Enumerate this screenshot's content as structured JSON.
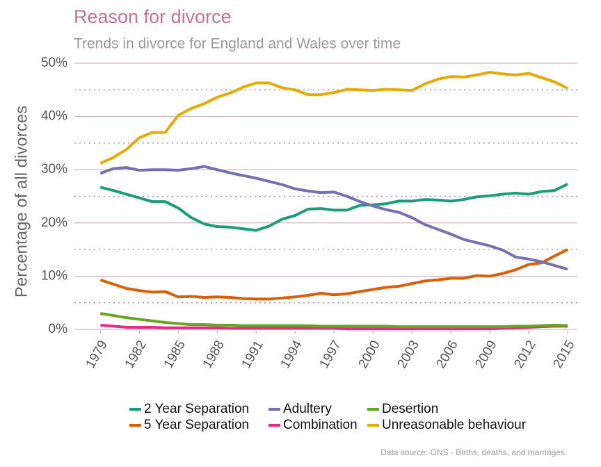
{
  "chart_data": {
    "type": "line",
    "title": "Reason for divorce",
    "subtitle": "Trends in divorce for England and Wales over time",
    "y_label": "Percentage of all divorces",
    "caption": "Data source: ONS - Births, deaths, and marriages",
    "x": [
      1979,
      1980,
      1981,
      1982,
      1983,
      1984,
      1985,
      1986,
      1987,
      1988,
      1989,
      1990,
      1991,
      1992,
      1993,
      1994,
      1995,
      1996,
      1997,
      1998,
      1999,
      2000,
      2001,
      2002,
      2003,
      2004,
      2005,
      2006,
      2007,
      2008,
      2009,
      2010,
      2011,
      2012,
      2013,
      2014,
      2015
    ],
    "xlim": [
      1977,
      2015.75
    ],
    "xticks": [
      1979,
      1982,
      1985,
      1988,
      1991,
      1994,
      1997,
      2000,
      2003,
      2006,
      2009,
      2012,
      2015
    ],
    "ylim": [
      0,
      50
    ],
    "yticks": [
      {
        "value": 0,
        "label": "0%"
      },
      {
        "value": 10,
        "label": "10%"
      },
      {
        "value": 20,
        "label": "20%"
      },
      {
        "value": 30,
        "label": "30%"
      },
      {
        "value": 40,
        "label": "40%"
      },
      {
        "value": 50,
        "label": "50%"
      }
    ],
    "minor_yticks": [
      5,
      15,
      25,
      35,
      45
    ],
    "grid": true,
    "legend": "bottom",
    "series": [
      {
        "name": "2 Year Separation",
        "color": "#1b9e77",
        "values": [
          26.7,
          26.1,
          25.4,
          24.7,
          24.0,
          24.0,
          22.8,
          21.0,
          19.8,
          19.3,
          19.2,
          18.9,
          18.6,
          19.4,
          20.7,
          21.4,
          22.6,
          22.7,
          22.4,
          22.4,
          23.3,
          23.4,
          23.6,
          24.1,
          24.1,
          24.4,
          24.3,
          24.1,
          24.4,
          24.9,
          25.1,
          25.4,
          25.6,
          25.4,
          25.9,
          26.1,
          27.3
        ]
      },
      {
        "name": "5 Year Separation",
        "color": "#d95f02",
        "values": [
          9.3,
          8.5,
          7.7,
          7.3,
          7.0,
          7.1,
          6.1,
          6.2,
          6.0,
          6.1,
          6.0,
          5.8,
          5.7,
          5.7,
          5.9,
          6.1,
          6.4,
          6.8,
          6.5,
          6.7,
          7.1,
          7.5,
          7.9,
          8.1,
          8.6,
          9.1,
          9.3,
          9.6,
          9.6,
          10.1,
          10.0,
          10.5,
          11.2,
          12.2,
          12.5,
          13.8,
          15.0
        ]
      },
      {
        "name": "Adultery",
        "color": "#7570b3",
        "values": [
          29.3,
          30.2,
          30.4,
          29.9,
          30.0,
          30.0,
          29.9,
          30.2,
          30.6,
          30.0,
          29.4,
          28.9,
          28.4,
          27.8,
          27.2,
          26.4,
          26.0,
          25.7,
          25.8,
          25.0,
          24.0,
          23.2,
          22.5,
          22.0,
          21.0,
          19.7,
          18.8,
          17.9,
          16.9,
          16.3,
          15.7,
          14.9,
          13.6,
          13.2,
          12.7,
          12.0,
          11.3
        ]
      },
      {
        "name": "Combination",
        "color": "#e7298a",
        "values": [
          0.8,
          0.6,
          0.4,
          0.4,
          0.4,
          0.3,
          0.3,
          0.3,
          0.3,
          0.3,
          0.2,
          0.2,
          0.2,
          0.2,
          0.2,
          0.2,
          0.2,
          0.2,
          0.2,
          0.1,
          0.1,
          0.1,
          0.1,
          0.1,
          0.1,
          0.1,
          0.1,
          0.1,
          0.1,
          0.1,
          0.1,
          0.2,
          0.3,
          0.4,
          0.5,
          0.6,
          0.6
        ]
      },
      {
        "name": "Desertion",
        "color": "#66a61e",
        "values": [
          3.0,
          2.6,
          2.2,
          1.9,
          1.6,
          1.3,
          1.1,
          0.9,
          0.9,
          0.8,
          0.8,
          0.7,
          0.7,
          0.7,
          0.7,
          0.7,
          0.7,
          0.6,
          0.6,
          0.6,
          0.6,
          0.6,
          0.6,
          0.5,
          0.5,
          0.5,
          0.5,
          0.5,
          0.5,
          0.5,
          0.5,
          0.5,
          0.6,
          0.6,
          0.7,
          0.8,
          0.7
        ]
      },
      {
        "name": "Unreasonable behaviour",
        "color": "#e6ab02",
        "values": [
          31.2,
          32.3,
          33.8,
          36.0,
          37.0,
          37.0,
          40.2,
          41.5,
          42.4,
          43.6,
          44.4,
          45.5,
          46.3,
          46.3,
          45.4,
          45.0,
          44.1,
          44.1,
          44.5,
          45.1,
          45.0,
          44.9,
          45.1,
          45.0,
          44.9,
          46.1,
          47.0,
          47.5,
          47.4,
          47.8,
          48.3,
          48.0,
          47.8,
          48.1,
          47.3,
          46.5,
          45.3
        ]
      }
    ]
  }
}
